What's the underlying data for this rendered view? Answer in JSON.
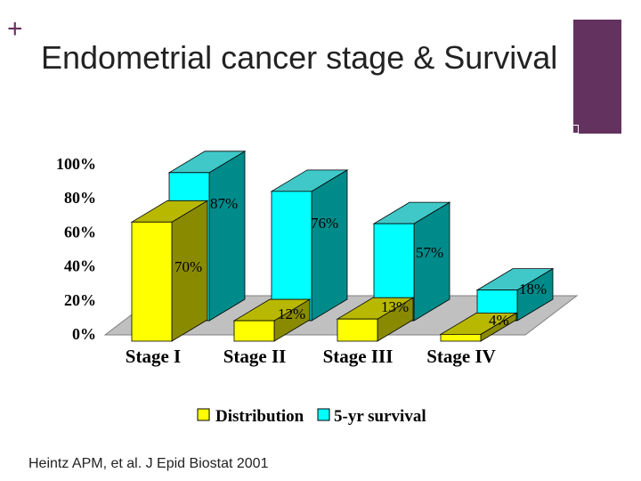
{
  "slide": {
    "plus_symbol": "+",
    "title": "Endometrial cancer stage & Survival",
    "citation": "Heintz APM, et al. J Epid Biostat 2001",
    "accent_color": "#63325f"
  },
  "chart_data": {
    "type": "bar",
    "title": "",
    "xlabel": "",
    "ylabel": "",
    "ylim": [
      0,
      100
    ],
    "y_ticks": [
      "0%",
      "20%",
      "40%",
      "60%",
      "80%",
      "100%"
    ],
    "categories": [
      "Stage I",
      "Stage II",
      "Stage III",
      "Stage IV"
    ],
    "series": [
      {
        "name": "Distribution",
        "values": [
          70,
          12,
          13,
          4
        ],
        "labels": [
          "70%",
          "12%",
          "13%",
          "4%"
        ],
        "color": "#ffff00",
        "side_color": "#8a8a00",
        "top_color": "#b8b800"
      },
      {
        "name": "5-yr survival",
        "values": [
          87,
          76,
          57,
          18
        ],
        "labels": [
          "87%",
          "76%",
          "57%",
          "18%"
        ],
        "color": "#00ffff",
        "side_color": "#008b8b",
        "top_color": "#40c8c8"
      }
    ],
    "legend_position": "bottom",
    "grid": false,
    "three_d": true
  }
}
